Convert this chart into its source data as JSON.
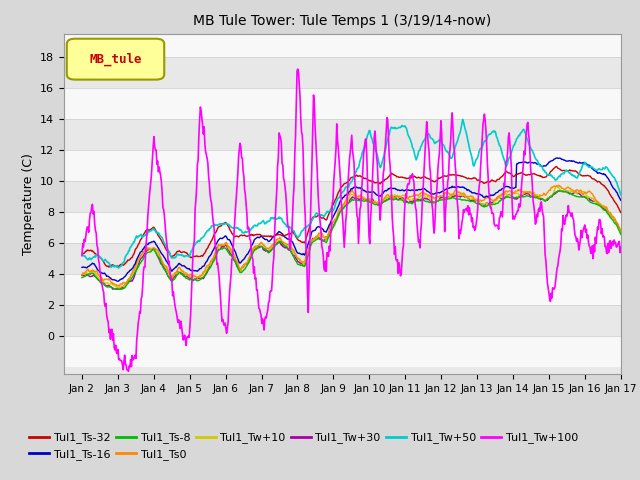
{
  "title": "MB Tule Tower: Tule Temps 1 (3/19/14-now)",
  "ylabel": "Temperature (C)",
  "xlim_days": [
    0.5,
    15.7
  ],
  "ylim": [
    -2.5,
    19.5
  ],
  "yticks": [
    0,
    2,
    4,
    6,
    8,
    10,
    12,
    14,
    16,
    18
  ],
  "xtick_labels": [
    "Jan 2",
    "Jan 3",
    "Jan 4",
    "Jan 5",
    "Jan 6",
    "Jan 7",
    "Jan 8",
    "Jan 9",
    "Jan 10",
    "Jan 11",
    "Jan 12",
    "Jan 13",
    "Jan 14",
    "Jan 15",
    "Jan 16",
    "Jan 17"
  ],
  "bg_color": "#d8d8d8",
  "plot_bg": "#ffffff",
  "band_colors": [
    "#e8e8e8",
    "#f8f8f8"
  ],
  "grid_color": "#cccccc",
  "series": {
    "Tul1_Ts-32": {
      "color": "#cc0000",
      "lw": 1.0
    },
    "Tul1_Ts-16": {
      "color": "#0000cc",
      "lw": 1.0
    },
    "Tul1_Ts-8": {
      "color": "#00bb00",
      "lw": 1.0
    },
    "Tul1_Ts0": {
      "color": "#ff8800",
      "lw": 1.0
    },
    "Tul1_Tw+10": {
      "color": "#cccc00",
      "lw": 1.0
    },
    "Tul1_Tw+30": {
      "color": "#aa00aa",
      "lw": 1.0
    },
    "Tul1_Tw+50": {
      "color": "#00cccc",
      "lw": 1.2
    },
    "Tul1_Tw+100": {
      "color": "#ff00ff",
      "lw": 1.2
    }
  },
  "legend_box": {
    "color": "#ffff99",
    "edge": "#999900",
    "label": "MB_tule",
    "text_color": "#cc0000"
  }
}
